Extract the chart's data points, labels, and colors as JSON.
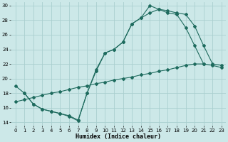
{
  "xlabel": "Humidex (Indice chaleur)",
  "bg_color": "#cce8e8",
  "grid_color": "#aacfcf",
  "line_color": "#1e6b5e",
  "xlim": [
    -0.5,
    23.5
  ],
  "ylim": [
    13.5,
    30.5
  ],
  "xticks": [
    0,
    1,
    2,
    3,
    4,
    5,
    6,
    7,
    8,
    9,
    10,
    11,
    12,
    13,
    14,
    15,
    16,
    17,
    18,
    19,
    20,
    21,
    22,
    23
  ],
  "yticks": [
    14,
    16,
    18,
    20,
    22,
    24,
    26,
    28,
    30
  ],
  "line1_x": [
    0,
    1,
    2,
    3,
    4,
    5,
    6,
    7,
    8,
    9,
    10,
    11,
    12,
    13,
    14,
    15,
    16,
    17,
    18,
    19,
    20,
    21,
    22,
    23
  ],
  "line1_y": [
    19,
    18,
    16.5,
    15.8,
    15.5,
    15.2,
    14.8,
    14.2,
    18,
    21.2,
    23.5,
    24,
    25,
    27.5,
    28.3,
    30,
    29.5,
    29.3,
    29,
    28.8,
    27.2,
    24.5,
    22,
    21.8
  ],
  "line2_x": [
    1,
    2,
    3,
    4,
    5,
    6,
    7,
    8,
    9,
    10,
    11,
    12,
    13,
    14,
    15,
    16,
    17,
    18,
    19,
    20,
    21
  ],
  "line2_y": [
    18,
    16.5,
    15.8,
    15.5,
    15.2,
    14.9,
    14.3,
    18,
    21,
    23.5,
    24,
    25,
    27.5,
    28.3,
    29,
    29.5,
    29,
    28.8,
    27,
    24.5,
    22
  ],
  "line3_x": [
    0,
    1,
    2,
    3,
    4,
    5,
    6,
    7,
    8,
    9,
    10,
    11,
    12,
    13,
    14,
    15,
    16,
    17,
    18,
    19,
    20,
    21,
    22,
    23
  ],
  "line3_y": [
    16.8,
    17.1,
    17.4,
    17.7,
    18.0,
    18.2,
    18.5,
    18.8,
    19.0,
    19.3,
    19.5,
    19.8,
    20.0,
    20.2,
    20.5,
    20.7,
    21.0,
    21.2,
    21.5,
    21.8,
    22.0,
    22.0,
    21.8,
    21.5
  ]
}
